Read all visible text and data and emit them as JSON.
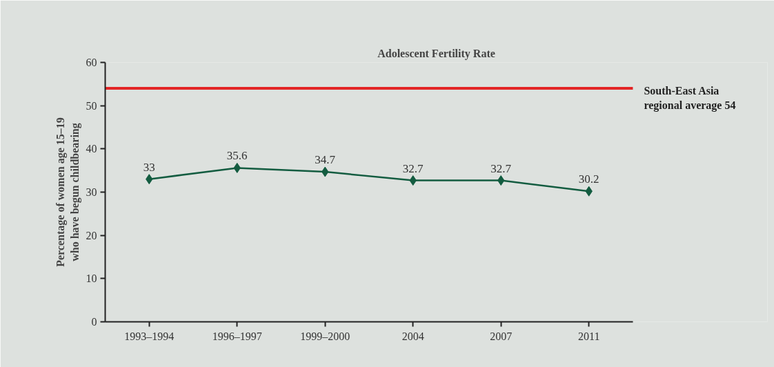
{
  "chart_data": {
    "type": "line",
    "title": "Adolescent Fertility Rate",
    "ylabel": "Percentage of women age 15–19 who have begun childbearing",
    "categories": [
      "1993–1994",
      "1996–1997",
      "1999–2000",
      "2004",
      "2007",
      "2011"
    ],
    "series": [
      {
        "color": "#135c40",
        "values": [
          33,
          35.6,
          34.7,
          32.7,
          32.7,
          30.2
        ]
      }
    ],
    "ylim": [
      0,
      60
    ],
    "yticks": [
      0,
      10,
      20,
      30,
      40,
      50,
      60
    ],
    "ref_lines": [
      {
        "axis": "y",
        "value": 54,
        "label": "South-East Asia\nregional average 54",
        "color": "#e32526"
      }
    ],
    "data_labels": true,
    "marker": "diamond",
    "grid": false
  }
}
